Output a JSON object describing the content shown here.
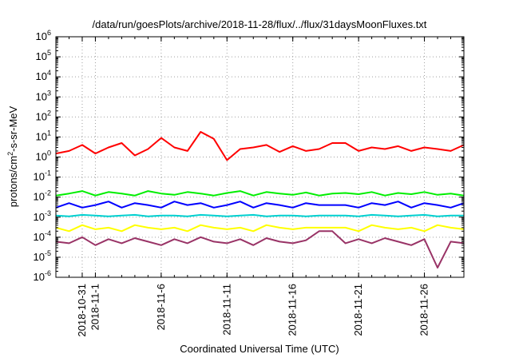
{
  "chart_data": {
    "type": "line",
    "title": "/data/run/goesPlots/archive/2018-11-28/flux/../flux/31daysMoonFluxes.txt",
    "xlabel": "Coordinated Universal Time (UTC)",
    "ylabel_parts": {
      "pre": "protons/cm",
      "sup": "2",
      "post": "-s-sr-MeV"
    },
    "yscale": "log",
    "ylim_exp": [
      -6,
      6
    ],
    "y_ticks": [
      {
        "base": "10",
        "exp": "6"
      },
      {
        "base": "10",
        "exp": "5"
      },
      {
        "base": "10",
        "exp": "4"
      },
      {
        "base": "10",
        "exp": "3"
      },
      {
        "base": "10",
        "exp": "2"
      },
      {
        "base": "10",
        "exp": "1"
      },
      {
        "base": "10",
        "exp": "0"
      },
      {
        "base": "10",
        "exp": "-1"
      },
      {
        "base": "10",
        "exp": "-2"
      },
      {
        "base": "10",
        "exp": "-3"
      },
      {
        "base": "10",
        "exp": "-4"
      },
      {
        "base": "10",
        "exp": "-5"
      },
      {
        "base": "10",
        "exp": "-6"
      }
    ],
    "xlim": [
      "2018-10-29",
      "2018-11-29"
    ],
    "x_ticks": [
      {
        "date": "2018-10-31",
        "label": "2018-10-31"
      },
      {
        "date": "2018-11-01",
        "label": "2018-11-1"
      },
      {
        "date": "2018-11-06",
        "label": "2018-11-6"
      },
      {
        "date": "2018-11-11",
        "label": "2018-11-11"
      },
      {
        "date": "2018-11-16",
        "label": "2018-11-16"
      },
      {
        "date": "2018-11-21",
        "label": "2018-11-21"
      },
      {
        "date": "2018-11-26",
        "label": "2018-11-26"
      }
    ],
    "grid": true,
    "series": [
      {
        "color": "#ff0000",
        "points": [
          [
            "2018-10-29",
            1.5
          ],
          [
            "2018-10-30",
            2.0
          ],
          [
            "2018-10-31",
            4.0
          ],
          [
            "2018-11-01",
            1.5
          ],
          [
            "2018-11-02",
            3.0
          ],
          [
            "2018-11-03",
            5.0
          ],
          [
            "2018-11-04",
            1.2
          ],
          [
            "2018-11-05",
            2.5
          ],
          [
            "2018-11-06",
            9.0
          ],
          [
            "2018-11-07",
            3.0
          ],
          [
            "2018-11-08",
            2.0
          ],
          [
            "2018-11-09",
            18.0
          ],
          [
            "2018-11-10",
            8.0
          ],
          [
            "2018-11-11",
            0.7
          ],
          [
            "2018-11-12",
            2.5
          ],
          [
            "2018-11-13",
            3.0
          ],
          [
            "2018-11-14",
            4.0
          ],
          [
            "2018-11-15",
            1.8
          ],
          [
            "2018-11-16",
            3.5
          ],
          [
            "2018-11-17",
            2.0
          ],
          [
            "2018-11-18",
            2.5
          ],
          [
            "2018-11-19",
            5.0
          ],
          [
            "2018-11-20",
            5.0
          ],
          [
            "2018-11-21",
            2.0
          ],
          [
            "2018-11-22",
            3.0
          ],
          [
            "2018-11-23",
            2.5
          ],
          [
            "2018-11-24",
            3.5
          ],
          [
            "2018-11-25",
            2.0
          ],
          [
            "2018-11-26",
            3.0
          ],
          [
            "2018-11-27",
            2.5
          ],
          [
            "2018-11-28",
            2.0
          ],
          [
            "2018-11-29",
            4.0
          ]
        ]
      },
      {
        "color": "#00ee00",
        "points": [
          [
            "2018-10-29",
            0.012
          ],
          [
            "2018-10-30",
            0.015
          ],
          [
            "2018-10-31",
            0.02
          ],
          [
            "2018-11-01",
            0.012
          ],
          [
            "2018-11-02",
            0.018
          ],
          [
            "2018-11-03",
            0.015
          ],
          [
            "2018-11-04",
            0.012
          ],
          [
            "2018-11-05",
            0.02
          ],
          [
            "2018-11-06",
            0.015
          ],
          [
            "2018-11-07",
            0.013
          ],
          [
            "2018-11-08",
            0.018
          ],
          [
            "2018-11-09",
            0.015
          ],
          [
            "2018-11-10",
            0.012
          ],
          [
            "2018-11-11",
            0.016
          ],
          [
            "2018-11-12",
            0.02
          ],
          [
            "2018-11-13",
            0.012
          ],
          [
            "2018-11-14",
            0.018
          ],
          [
            "2018-11-15",
            0.015
          ],
          [
            "2018-11-16",
            0.013
          ],
          [
            "2018-11-17",
            0.017
          ],
          [
            "2018-11-18",
            0.012
          ],
          [
            "2018-11-19",
            0.015
          ],
          [
            "2018-11-20",
            0.016
          ],
          [
            "2018-11-21",
            0.014
          ],
          [
            "2018-11-22",
            0.018
          ],
          [
            "2018-11-23",
            0.012
          ],
          [
            "2018-11-24",
            0.016
          ],
          [
            "2018-11-25",
            0.014
          ],
          [
            "2018-11-26",
            0.018
          ],
          [
            "2018-11-27",
            0.013
          ],
          [
            "2018-11-28",
            0.015
          ],
          [
            "2018-11-29",
            0.012
          ]
        ]
      },
      {
        "color": "#0000ff",
        "points": [
          [
            "2018-10-29",
            0.003
          ],
          [
            "2018-10-30",
            0.005
          ],
          [
            "2018-10-31",
            0.003
          ],
          [
            "2018-11-01",
            0.004
          ],
          [
            "2018-11-02",
            0.006
          ],
          [
            "2018-11-03",
            0.003
          ],
          [
            "2018-11-04",
            0.005
          ],
          [
            "2018-11-05",
            0.004
          ],
          [
            "2018-11-06",
            0.003
          ],
          [
            "2018-11-07",
            0.006
          ],
          [
            "2018-11-08",
            0.004
          ],
          [
            "2018-11-09",
            0.005
          ],
          [
            "2018-11-10",
            0.003
          ],
          [
            "2018-11-11",
            0.004
          ],
          [
            "2018-11-12",
            0.006
          ],
          [
            "2018-11-13",
            0.003
          ],
          [
            "2018-11-14",
            0.005
          ],
          [
            "2018-11-15",
            0.004
          ],
          [
            "2018-11-16",
            0.003
          ],
          [
            "2018-11-17",
            0.005
          ],
          [
            "2018-11-18",
            0.004
          ],
          [
            "2018-11-19",
            0.004
          ],
          [
            "2018-11-20",
            0.004
          ],
          [
            "2018-11-21",
            0.003
          ],
          [
            "2018-11-22",
            0.005
          ],
          [
            "2018-11-23",
            0.004
          ],
          [
            "2018-11-24",
            0.006
          ],
          [
            "2018-11-25",
            0.003
          ],
          [
            "2018-11-26",
            0.005
          ],
          [
            "2018-11-27",
            0.004
          ],
          [
            "2018-11-28",
            0.003
          ],
          [
            "2018-11-29",
            0.005
          ]
        ]
      },
      {
        "color": "#00d0d0",
        "points": [
          [
            "2018-10-29",
            0.0012
          ],
          [
            "2018-10-30",
            0.0011
          ],
          [
            "2018-10-31",
            0.0013
          ],
          [
            "2018-11-01",
            0.0012
          ],
          [
            "2018-11-02",
            0.0011
          ],
          [
            "2018-11-03",
            0.0012
          ],
          [
            "2018-11-04",
            0.0013
          ],
          [
            "2018-11-05",
            0.0011
          ],
          [
            "2018-11-06",
            0.0012
          ],
          [
            "2018-11-07",
            0.0012
          ],
          [
            "2018-11-08",
            0.0011
          ],
          [
            "2018-11-09",
            0.0013
          ],
          [
            "2018-11-10",
            0.0012
          ],
          [
            "2018-11-11",
            0.0011
          ],
          [
            "2018-11-12",
            0.0012
          ],
          [
            "2018-11-13",
            0.0013
          ],
          [
            "2018-11-14",
            0.0011
          ],
          [
            "2018-11-15",
            0.0012
          ],
          [
            "2018-11-16",
            0.0012
          ],
          [
            "2018-11-17",
            0.0011
          ],
          [
            "2018-11-18",
            0.0012
          ],
          [
            "2018-11-19",
            0.0012
          ],
          [
            "2018-11-20",
            0.0012
          ],
          [
            "2018-11-21",
            0.0011
          ],
          [
            "2018-11-22",
            0.0013
          ],
          [
            "2018-11-23",
            0.0012
          ],
          [
            "2018-11-24",
            0.0011
          ],
          [
            "2018-11-25",
            0.0012
          ],
          [
            "2018-11-26",
            0.0013
          ],
          [
            "2018-11-27",
            0.0011
          ],
          [
            "2018-11-28",
            0.0012
          ],
          [
            "2018-11-29",
            0.0012
          ]
        ]
      },
      {
        "color": "#ffff00",
        "points": [
          [
            "2018-10-29",
            0.0003
          ],
          [
            "2018-10-30",
            0.0002
          ],
          [
            "2018-10-31",
            0.0004
          ],
          [
            "2018-11-01",
            0.00025
          ],
          [
            "2018-11-02",
            0.0003
          ],
          [
            "2018-11-03",
            0.0002
          ],
          [
            "2018-11-04",
            0.0004
          ],
          [
            "2018-11-05",
            0.0003
          ],
          [
            "2018-11-06",
            0.00025
          ],
          [
            "2018-11-07",
            0.0003
          ],
          [
            "2018-11-08",
            0.0002
          ],
          [
            "2018-11-09",
            0.0004
          ],
          [
            "2018-11-10",
            0.0003
          ],
          [
            "2018-11-11",
            0.00025
          ],
          [
            "2018-11-12",
            0.0003
          ],
          [
            "2018-11-13",
            0.0002
          ],
          [
            "2018-11-14",
            0.0004
          ],
          [
            "2018-11-15",
            0.0003
          ],
          [
            "2018-11-16",
            0.00025
          ],
          [
            "2018-11-17",
            0.0003
          ],
          [
            "2018-11-18",
            0.0003
          ],
          [
            "2018-11-19",
            0.0003
          ],
          [
            "2018-11-20",
            0.0003
          ],
          [
            "2018-11-21",
            0.0002
          ],
          [
            "2018-11-22",
            0.0004
          ],
          [
            "2018-11-23",
            0.0003
          ],
          [
            "2018-11-24",
            0.00025
          ],
          [
            "2018-11-25",
            0.0003
          ],
          [
            "2018-11-26",
            0.0002
          ],
          [
            "2018-11-27",
            0.0004
          ],
          [
            "2018-11-28",
            0.0003
          ],
          [
            "2018-11-29",
            0.00025
          ]
        ]
      },
      {
        "color": "#993366",
        "points": [
          [
            "2018-10-29",
            6e-05
          ],
          [
            "2018-10-30",
            5e-05
          ],
          [
            "2018-10-31",
            0.0001
          ],
          [
            "2018-11-01",
            4e-05
          ],
          [
            "2018-11-02",
            8e-05
          ],
          [
            "2018-11-03",
            5e-05
          ],
          [
            "2018-11-04",
            9e-05
          ],
          [
            "2018-11-05",
            6e-05
          ],
          [
            "2018-11-06",
            4e-05
          ],
          [
            "2018-11-07",
            8e-05
          ],
          [
            "2018-11-08",
            5e-05
          ],
          [
            "2018-11-09",
            0.0001
          ],
          [
            "2018-11-10",
            6e-05
          ],
          [
            "2018-11-11",
            5e-05
          ],
          [
            "2018-11-12",
            8e-05
          ],
          [
            "2018-11-13",
            4e-05
          ],
          [
            "2018-11-14",
            9e-05
          ],
          [
            "2018-11-15",
            6e-05
          ],
          [
            "2018-11-16",
            5e-05
          ],
          [
            "2018-11-17",
            7e-05
          ],
          [
            "2018-11-18",
            0.0002
          ],
          [
            "2018-11-19",
            0.0002
          ],
          [
            "2018-11-20",
            5e-05
          ],
          [
            "2018-11-21",
            8e-05
          ],
          [
            "2018-11-22",
            5e-05
          ],
          [
            "2018-11-23",
            9e-05
          ],
          [
            "2018-11-24",
            6e-05
          ],
          [
            "2018-11-25",
            4e-05
          ],
          [
            "2018-11-26",
            8e-05
          ],
          [
            "2018-11-27",
            3e-06
          ],
          [
            "2018-11-28",
            6e-05
          ],
          [
            "2018-11-29",
            5e-05
          ]
        ]
      }
    ]
  }
}
